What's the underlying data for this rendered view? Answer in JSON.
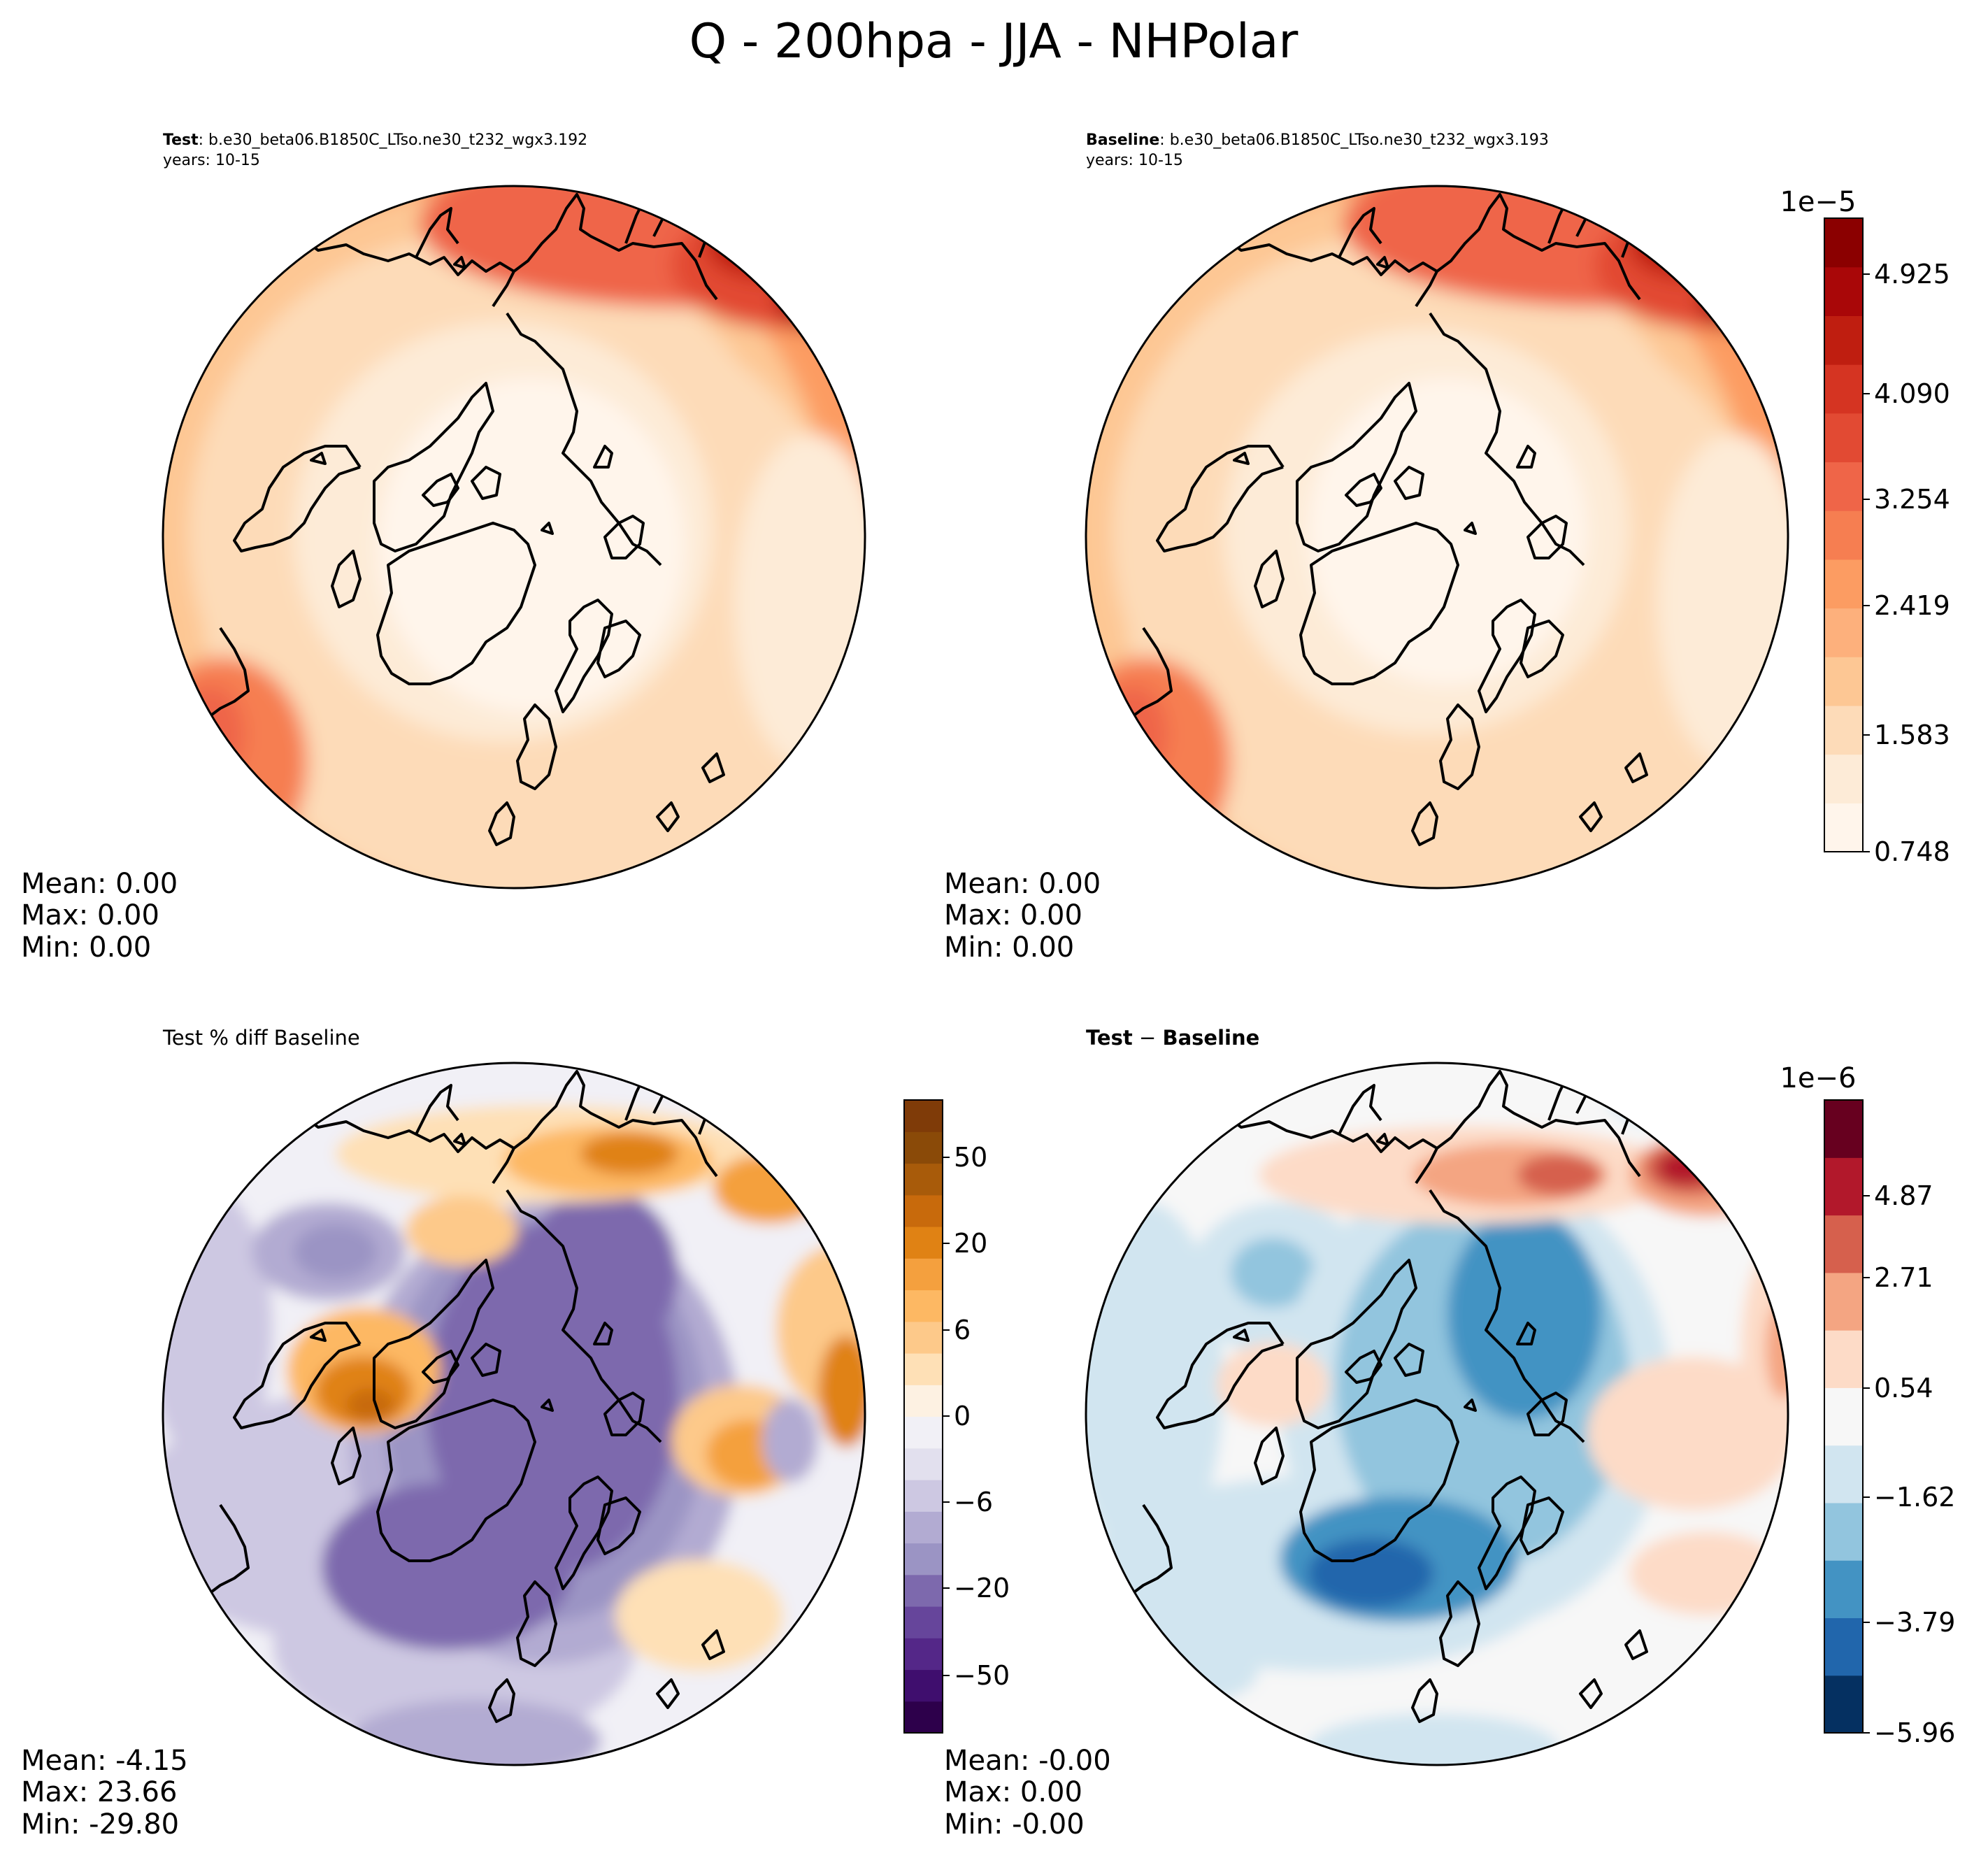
{
  "title": "Q - 200hpa - JJA - NHPolar",
  "panels": [
    {
      "id": "test",
      "label_bold": "Test",
      "label_text": ": b.e30_beta06.B1850C_LTso.ne30_t232_wgx3.192",
      "years": "years: 10-15",
      "stats": {
        "mean": "Mean:  0.00",
        "max": "Max:  0.00",
        "min": "Min:  0.00"
      }
    },
    {
      "id": "baseline",
      "label_bold": "Baseline",
      "label_text": ": b.e30_beta06.B1850C_LTso.ne30_t232_wgx3.193",
      "years": "years: 10-15",
      "stats": {
        "mean": "Mean:  0.00",
        "max": "Max:  0.00",
        "min": "Min:  0.00"
      }
    },
    {
      "id": "pct-diff",
      "label_text": "Test % diff Baseline",
      "stats": {
        "mean": "Mean: -4.15",
        "max": "Max: 23.66",
        "min": "Min: -29.80"
      }
    },
    {
      "id": "diff",
      "label_bold_a": "Test",
      "label_mid": " − ",
      "label_bold_b": "Baseline",
      "stats": {
        "mean": "Mean: -0.00",
        "max": "Max:  0.00",
        "min": "Min: -0.00"
      }
    }
  ],
  "colorbars": {
    "top": {
      "offset": "1e−5",
      "ticks": [
        "4.925",
        "4.090",
        "3.254",
        "2.419",
        "1.583",
        "0.748"
      ],
      "colors": [
        "#fff5eb",
        "#fdebd7",
        "#fddbb8",
        "#fdc794",
        "#fdb07c",
        "#fc9c62",
        "#f67e51",
        "#ef6548",
        "#e24a33",
        "#d53422",
        "#bf1e10",
        "#a90708",
        "#8b0000"
      ]
    },
    "pct": {
      "ticks": [
        "50",
        "20",
        "6",
        "0",
        "−6",
        "−20",
        "−50"
      ],
      "colors": [
        "#2d004b",
        "#3f0e6e",
        "#542788",
        "#66459b",
        "#7d69ad",
        "#9b94c4",
        "#b2abd2",
        "#cdc8e2",
        "#e2e0ee",
        "#f1f0f6",
        "#fdf1e2",
        "#fee0b6",
        "#fdc98a",
        "#fdb863",
        "#f4a03e",
        "#e08214",
        "#c86a0c",
        "#a85b0a",
        "#8a4a08",
        "#7f3b08"
      ]
    },
    "diff": {
      "offset": "1e−6",
      "ticks": [
        "4.87",
        "2.71",
        "0.54",
        "−1.62",
        "−3.79",
        "−5.96"
      ],
      "colors": [
        "#053061",
        "#2166ac",
        "#4393c3",
        "#92c5de",
        "#d1e5f0",
        "#f7f7f7",
        "#fddbc7",
        "#f4a582",
        "#d6604d",
        "#b2182b",
        "#67001f"
      ]
    }
  },
  "chart_data": [
    {
      "type": "heatmap",
      "title": "Test: b.e30_beta06.B1850C_LTso.ne30_t232_wgx3.192 (years: 10-15)",
      "projection": "north polar stereographic",
      "colorbar_scale": "1e-5",
      "colorbar_ticks": [
        4.925,
        4.09,
        3.254,
        2.419,
        1.583,
        0.748
      ],
      "vmin": 0.748,
      "vmax": 5.3,
      "stats": {
        "mean": 0.0,
        "max": 0.0,
        "min": 0.0
      }
    },
    {
      "type": "heatmap",
      "title": "Baseline: b.e30_beta06.B1850C_LTso.ne30_t232_wgx3.193 (years: 10-15)",
      "projection": "north polar stereographic",
      "colorbar_scale": "1e-5",
      "colorbar_ticks": [
        4.925,
        4.09,
        3.254,
        2.419,
        1.583,
        0.748
      ],
      "vmin": 0.748,
      "vmax": 5.3,
      "stats": {
        "mean": 0.0,
        "max": 0.0,
        "min": 0.0
      }
    },
    {
      "type": "heatmap",
      "title": "Test % diff Baseline",
      "projection": "north polar stereographic",
      "colorbar_ticks": [
        50,
        20,
        6,
        0,
        -6,
        -20,
        -50
      ],
      "stats": {
        "mean": -4.15,
        "max": 23.66,
        "min": -29.8
      }
    },
    {
      "type": "heatmap",
      "title": "Test − Baseline",
      "projection": "north polar stereographic",
      "colorbar_scale": "1e-6",
      "colorbar_ticks": [
        4.87,
        2.71,
        0.54,
        -1.62,
        -3.79,
        -5.96
      ],
      "vmin": -5.96,
      "vmax": 6.0,
      "stats": {
        "mean": -0.0,
        "max": 0.0,
        "min": -0.0
      }
    }
  ]
}
